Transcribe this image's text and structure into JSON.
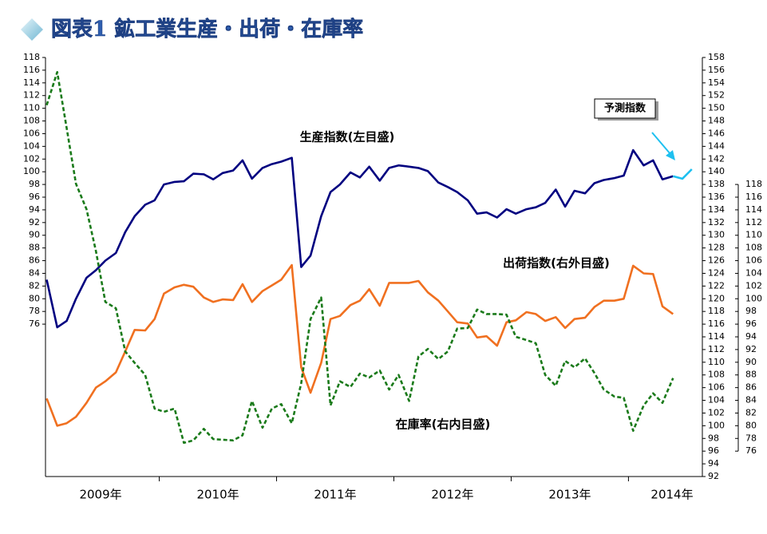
{
  "chart_data": {
    "type": "line",
    "title": "図表1 鉱工業生産・出荷・在庫率",
    "x": [
      2009.04,
      2009.13,
      2009.21,
      2009.29,
      2009.38,
      2009.46,
      2009.54,
      2009.63,
      2009.71,
      2009.79,
      2009.88,
      2009.96,
      2010.04,
      2010.13,
      2010.21,
      2010.29,
      2010.38,
      2010.46,
      2010.54,
      2010.63,
      2010.71,
      2010.79,
      2010.88,
      2010.96,
      2011.04,
      2011.13,
      2011.21,
      2011.29,
      2011.38,
      2011.46,
      2011.54,
      2011.63,
      2011.71,
      2011.79,
      2011.88,
      2011.96,
      2012.04,
      2012.13,
      2012.21,
      2012.29,
      2012.38,
      2012.46,
      2012.54,
      2012.63,
      2012.71,
      2012.79,
      2012.88,
      2012.96,
      2013.04,
      2013.13,
      2013.21,
      2013.29,
      2013.38,
      2013.46,
      2013.54,
      2013.63,
      2013.71,
      2013.79,
      2013.88,
      2013.96,
      2014.04,
      2014.13,
      2014.21,
      2014.29,
      2014.38
    ],
    "xlim": [
      2009.03,
      2014.63
    ],
    "xticks": [
      2010,
      2011,
      2012,
      2013,
      2014
    ],
    "x_labels": [
      {
        "value": 2009,
        "label": "2009年"
      },
      {
        "value": 2010,
        "label": "2010年"
      },
      {
        "value": 2011,
        "label": "2011年"
      },
      {
        "value": 2012,
        "label": "2012年"
      },
      {
        "value": 2013,
        "label": "2013年"
      },
      {
        "value": 2014,
        "label": "2014年"
      }
    ],
    "ylim": [
      52,
      118
    ],
    "yticks": [
      76,
      78,
      80,
      82,
      84,
      86,
      88,
      90,
      92,
      94,
      96,
      98,
      100,
      102,
      104,
      106,
      108,
      110,
      112,
      114,
      116,
      118
    ],
    "y2lim": [
      92,
      158
    ],
    "y2ticks": [
      92,
      94,
      96,
      98,
      100,
      102,
      104,
      106,
      108,
      110,
      112,
      114,
      116,
      118,
      120,
      122,
      124,
      126,
      128,
      130,
      132,
      134,
      136,
      138,
      140,
      142,
      144,
      146,
      148,
      150,
      152,
      154,
      156,
      158
    ],
    "y3lim": [
      72,
      138
    ],
    "y3ticks": [
      76,
      78,
      80,
      82,
      84,
      86,
      88,
      90,
      92,
      94,
      96,
      98,
      100,
      102,
      104,
      106,
      108,
      110,
      112,
      114,
      116,
      118
    ],
    "grid": false,
    "series": [
      {
        "name": "生産指数(左目盛)",
        "color": "#000080",
        "axis": "y",
        "line_style": "solid",
        "values": [
          83,
          75.5,
          76.5,
          80,
          83.3,
          84.5,
          86,
          87.2,
          90.5,
          93,
          94.8,
          95.5,
          98,
          98.4,
          98.5,
          99.7,
          99.6,
          98.8,
          99.8,
          100.2,
          101.8,
          98.9,
          100.6,
          101.2,
          101.6,
          102.2,
          85,
          86.8,
          93,
          96.8,
          98,
          99.9,
          99.1,
          100.8,
          98.6,
          100.6,
          101,
          100.8,
          100.6,
          100.1,
          98.3,
          97.6,
          96.8,
          95.5,
          93.4,
          93.6,
          92.8,
          94.1,
          93.4,
          94.1,
          94.4,
          95.1,
          97.2,
          94.5,
          97,
          96.6,
          98.2,
          98.7,
          99,
          99.4,
          103.4,
          101,
          101.8,
          98.8,
          99.3
        ]
      },
      {
        "name": "出荷指数(右外目盛)",
        "color": "#f07020",
        "axis": "y2",
        "line_style": "solid",
        "values": [
          104.3,
          100,
          100.4,
          101.4,
          103.6,
          106,
          107,
          108.4,
          111.7,
          115.1,
          115,
          116.8,
          120.8,
          121.8,
          122.2,
          121.9,
          120.2,
          119.5,
          119.9,
          119.8,
          122.3,
          119.5,
          121.2,
          122.1,
          123,
          125.3,
          109.2,
          105.2,
          109.9,
          116.8,
          117.3,
          119,
          119.7,
          121.5,
          118.9,
          122.5,
          122.5,
          122.5,
          122.8,
          121,
          119.7,
          118,
          116.3,
          116.1,
          113.9,
          114.1,
          112.6,
          116.3,
          116.6,
          117.9,
          117.6,
          116.5,
          117.1,
          115.4,
          116.8,
          117,
          118.7,
          119.7,
          119.7,
          120,
          125.2,
          124,
          123.9,
          118.8,
          117.6
        ]
      },
      {
        "name": "在庫率(右内目盛)",
        "color": "#1a7a1a",
        "axis": "y3",
        "line_style": "dashed",
        "values": [
          130.5,
          135.7,
          126.9,
          118.1,
          114.1,
          107.5,
          99.5,
          98.5,
          91.7,
          89.9,
          88,
          82.7,
          82.2,
          82.7,
          77.3,
          77.7,
          79.5,
          77.9,
          77.8,
          77.7,
          78.5,
          83.9,
          79.7,
          82.7,
          83.4,
          80.4,
          86.7,
          96.8,
          100.2,
          83.2,
          87,
          86.1,
          88.2,
          87.6,
          88.7,
          85.7,
          88,
          83.9,
          90.9,
          92.1,
          90.5,
          91.7,
          95.3,
          95.4,
          98.3,
          97.6,
          97.6,
          97.5,
          94,
          93.5,
          93,
          88,
          86.3,
          90.2,
          89.2,
          90.6,
          88.3,
          85.7,
          84.6,
          84.4,
          79.2,
          83.2,
          85.1,
          83.6,
          87.5
        ]
      },
      {
        "name": "予測指数",
        "color": "#1ec0f0",
        "axis": "y",
        "line_style": "solid",
        "x": [
          2014.38,
          2014.46,
          2014.54
        ],
        "values": [
          99.3,
          98.9,
          100.4
        ]
      }
    ]
  }
}
